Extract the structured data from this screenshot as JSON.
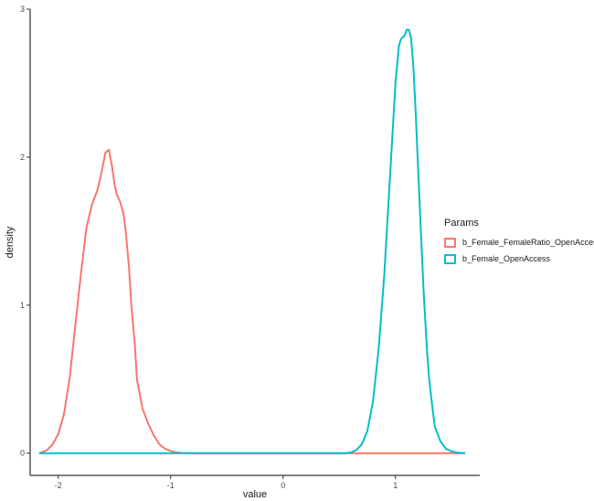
{
  "chart_data": {
    "type": "line",
    "xlabel": "value",
    "ylabel": "density",
    "xlim": [
      -2.25,
      1.75
    ],
    "ylim": [
      -0.15,
      3.0
    ],
    "xticks": [
      -2,
      -1,
      0,
      1
    ],
    "xtick_labels": [
      "-2",
      "-1",
      "0",
      "1"
    ],
    "yticks": [
      0,
      1,
      2,
      3
    ],
    "ytick_labels": [
      "0",
      "1",
      "2",
      "3"
    ],
    "grid": false,
    "legend": {
      "title": "Params",
      "placement": "right"
    },
    "series": [
      {
        "name": "b_Female_FemaleRatio_OpenAccess",
        "color": "#F8766D",
        "x": [
          -2.17,
          -2.1,
          -2.05,
          -2.0,
          -1.95,
          -1.9,
          -1.85,
          -1.8,
          -1.75,
          -1.7,
          -1.65,
          -1.62,
          -1.58,
          -1.55,
          -1.52,
          -1.5,
          -1.48,
          -1.45,
          -1.42,
          -1.4,
          -1.37,
          -1.35,
          -1.32,
          -1.3,
          -1.27,
          -1.25,
          -1.2,
          -1.15,
          -1.1,
          -1.05,
          -1.0,
          -0.95,
          -0.9,
          -0.8,
          -0.7,
          0.0,
          0.5,
          1.0,
          1.62
        ],
        "y": [
          0.0,
          0.02,
          0.06,
          0.13,
          0.26,
          0.5,
          0.85,
          1.2,
          1.52,
          1.68,
          1.78,
          1.88,
          2.03,
          2.05,
          1.93,
          1.82,
          1.75,
          1.7,
          1.62,
          1.5,
          1.25,
          1.0,
          0.75,
          0.5,
          0.38,
          0.3,
          0.2,
          0.12,
          0.06,
          0.03,
          0.015,
          0.005,
          0.002,
          0.0,
          0.0,
          0.0,
          0.0,
          0.0,
          0.0
        ]
      },
      {
        "name": "b_Female_OpenAccess",
        "color": "#00BFC4",
        "x": [
          -2.17,
          -1.0,
          0.0,
          0.55,
          0.6,
          0.65,
          0.7,
          0.75,
          0.8,
          0.85,
          0.9,
          0.95,
          1.0,
          1.03,
          1.05,
          1.08,
          1.1,
          1.12,
          1.14,
          1.16,
          1.18,
          1.2,
          1.22,
          1.25,
          1.28,
          1.3,
          1.33,
          1.35,
          1.4,
          1.45,
          1.5,
          1.55,
          1.6,
          1.62
        ],
        "y": [
          0.0,
          0.0,
          0.0,
          0.0,
          0.005,
          0.02,
          0.06,
          0.15,
          0.35,
          0.7,
          1.2,
          1.85,
          2.5,
          2.75,
          2.8,
          2.82,
          2.86,
          2.86,
          2.8,
          2.6,
          2.3,
          1.95,
          1.6,
          1.1,
          0.7,
          0.5,
          0.3,
          0.18,
          0.08,
          0.03,
          0.012,
          0.004,
          0.001,
          0.0
        ]
      }
    ]
  }
}
